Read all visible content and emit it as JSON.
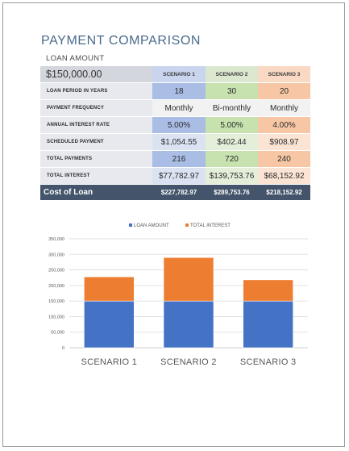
{
  "title": "PAYMENT COMPARISON",
  "subtitle": "LOAN AMOUNT",
  "loan_amount": "$150,000.00",
  "scenarios": [
    "SCENARIO 1",
    "SCENARIO 2",
    "SCENARIO 3"
  ],
  "rows": [
    {
      "label": "LOAN PERIOD IN YEARS",
      "values": [
        "18",
        "30",
        "20"
      ]
    },
    {
      "label": "PAYMENT FREQUENCY",
      "values": [
        "Monthly",
        "Bi-monthly",
        "Monthly"
      ]
    },
    {
      "label": "ANNUAL INTEREST RATE",
      "values": [
        "5.00%",
        "5.00%",
        "4.00%"
      ]
    },
    {
      "label": "SCHEDULED PAYMENT",
      "values": [
        "$1,054.55",
        "$402.44",
        "$908.97"
      ]
    },
    {
      "label": "TOTAL PAYMENTS",
      "values": [
        "216",
        "720",
        "240"
      ]
    },
    {
      "label": "TOTAL INTEREST",
      "values": [
        "$77,782.97",
        "$139,753.76",
        "$68,152.92"
      ]
    }
  ],
  "footer": {
    "label": "Cost of Loan",
    "values": [
      "$227,782.97",
      "$289,753.76",
      "$218,152.92"
    ]
  },
  "colors": {
    "loan_amount": "#4472c4",
    "total_interest": "#ed7d31",
    "header_dark": "#44546a"
  },
  "chart_data": {
    "type": "bar",
    "stacked": true,
    "categories": [
      "SCENARIO 1",
      "SCENARIO 2",
      "SCENARIO 3"
    ],
    "series": [
      {
        "name": "LOAN AMOUNT",
        "values": [
          150000,
          150000,
          150000
        ]
      },
      {
        "name": "TOTAL INTEREST",
        "values": [
          77782.97,
          139753.76,
          68152.92
        ]
      }
    ],
    "ylim": [
      0,
      350000
    ],
    "yticks": [
      "0",
      "50,000",
      "100,000",
      "150,000",
      "200,000",
      "250,000",
      "300,000",
      "350,000"
    ],
    "grid": true,
    "legend": "top"
  }
}
